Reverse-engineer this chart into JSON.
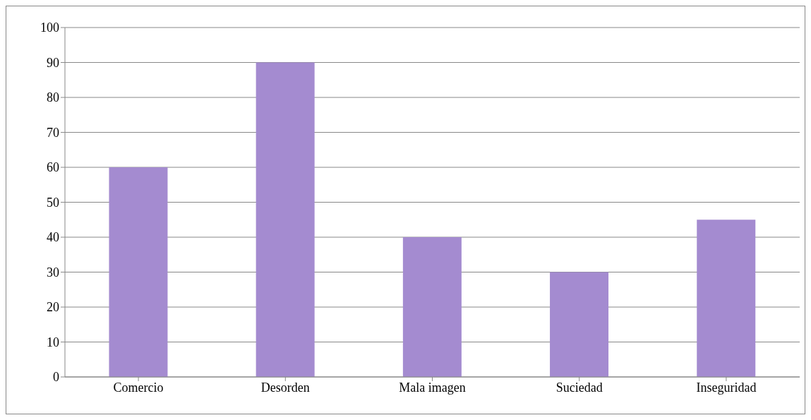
{
  "chart_data": {
    "type": "bar",
    "categories": [
      "Comercio",
      "Desorden",
      "Mala imagen",
      "Suciedad",
      "Inseguridad"
    ],
    "values": [
      60,
      90,
      40,
      30,
      45
    ],
    "color": "#a48bd0",
    "ylim": [
      0,
      100
    ],
    "yticks": [
      0,
      10,
      20,
      30,
      40,
      50,
      60,
      70,
      80,
      90,
      100
    ],
    "grid": "y"
  }
}
